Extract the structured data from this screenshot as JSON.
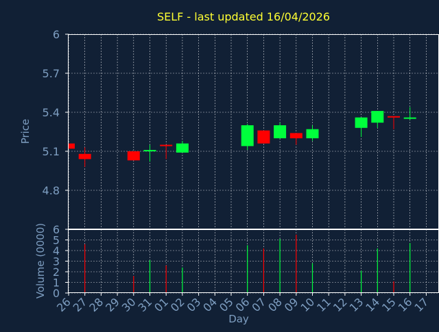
{
  "title": "SELF - last updated 16/04/2026",
  "colors": {
    "background": "#112035",
    "title": "#ffff33",
    "axis_text": "#7e9ec1",
    "frame": "#ffffff",
    "grid": "#ffffff",
    "up": "#00ff3c",
    "down": "#ff0000"
  },
  "chart_data": [
    {
      "type": "candlestick",
      "title": "SELF - last updated 16/04/2026",
      "ylabel": "Price",
      "ylim": [
        4.5,
        6.0
      ],
      "yticks": [
        "4.8",
        "5.1",
        "5.4",
        "5.7",
        "6"
      ],
      "grid": true,
      "x": [
        "26",
        "27",
        "28",
        "29",
        "30",
        "31",
        "01",
        "02",
        "03",
        "04",
        "05",
        "06",
        "07",
        "08",
        "09",
        "10",
        "11",
        "12",
        "13",
        "14",
        "15",
        "16",
        "17"
      ],
      "candles": [
        {
          "x": "26",
          "open": 5.16,
          "close": 5.12,
          "high": 5.16,
          "low": 5.12,
          "dir": "down"
        },
        {
          "x": "27",
          "open": 5.08,
          "close": 5.04,
          "high": 5.13,
          "low": 4.98,
          "dir": "down"
        },
        {
          "x": "30",
          "open": 5.1,
          "close": 5.03,
          "high": 5.1,
          "low": 5.03,
          "dir": "down"
        },
        {
          "x": "31",
          "open": 5.1,
          "close": 5.11,
          "high": 5.15,
          "low": 5.02,
          "dir": "up"
        },
        {
          "x": "01",
          "open": 5.15,
          "close": 5.14,
          "high": 5.15,
          "low": 5.04,
          "dir": "down"
        },
        {
          "x": "02",
          "open": 5.09,
          "close": 5.16,
          "high": 5.18,
          "low": 5.09,
          "dir": "up"
        },
        {
          "x": "06",
          "open": 5.14,
          "close": 5.3,
          "high": 5.31,
          "low": 5.11,
          "dir": "up"
        },
        {
          "x": "07",
          "open": 5.26,
          "close": 5.16,
          "high": 5.26,
          "low": 5.16,
          "dir": "down"
        },
        {
          "x": "08",
          "open": 5.2,
          "close": 5.3,
          "high": 5.32,
          "low": 5.2,
          "dir": "up"
        },
        {
          "x": "09",
          "open": 5.24,
          "close": 5.2,
          "high": 5.24,
          "low": 5.15,
          "dir": "down"
        },
        {
          "x": "10",
          "open": 5.2,
          "close": 5.27,
          "high": 5.3,
          "low": 5.18,
          "dir": "up"
        },
        {
          "x": "13",
          "open": 5.28,
          "close": 5.36,
          "high": 5.36,
          "low": 5.21,
          "dir": "up"
        },
        {
          "x": "14",
          "open": 5.32,
          "close": 5.41,
          "high": 5.41,
          "low": 5.28,
          "dir": "up"
        },
        {
          "x": "15",
          "open": 5.37,
          "close": 5.36,
          "high": 5.37,
          "low": 5.27,
          "dir": "down"
        },
        {
          "x": "16",
          "open": 5.35,
          "close": 5.36,
          "high": 5.44,
          "low": 5.34,
          "dir": "up"
        }
      ]
    },
    {
      "type": "bar",
      "ylabel": "Volume (0000)",
      "xlabel": "Day",
      "ylim": [
        0,
        6
      ],
      "yticks": [
        "0",
        "1",
        "2",
        "3",
        "4",
        "5",
        "6"
      ],
      "grid": true,
      "categories": [
        "26",
        "27",
        "28",
        "29",
        "30",
        "31",
        "01",
        "02",
        "03",
        "04",
        "05",
        "06",
        "07",
        "08",
        "09",
        "10",
        "11",
        "12",
        "13",
        "14",
        "15",
        "16",
        "17"
      ],
      "bars": [
        {
          "x": "27",
          "value": 4.6,
          "dir": "down"
        },
        {
          "x": "30",
          "value": 1.6,
          "dir": "down"
        },
        {
          "x": "31",
          "value": 3.1,
          "dir": "up"
        },
        {
          "x": "01",
          "value": 2.6,
          "dir": "down"
        },
        {
          "x": "02",
          "value": 2.4,
          "dir": "up"
        },
        {
          "x": "06",
          "value": 4.5,
          "dir": "up"
        },
        {
          "x": "07",
          "value": 4.2,
          "dir": "down"
        },
        {
          "x": "08",
          "value": 5.1,
          "dir": "up"
        },
        {
          "x": "09",
          "value": 5.5,
          "dir": "down"
        },
        {
          "x": "10",
          "value": 2.8,
          "dir": "up"
        },
        {
          "x": "13",
          "value": 2.1,
          "dir": "up"
        },
        {
          "x": "14",
          "value": 4.2,
          "dir": "up"
        },
        {
          "x": "15",
          "value": 1.1,
          "dir": "down"
        },
        {
          "x": "16",
          "value": 4.7,
          "dir": "up"
        }
      ]
    }
  ]
}
